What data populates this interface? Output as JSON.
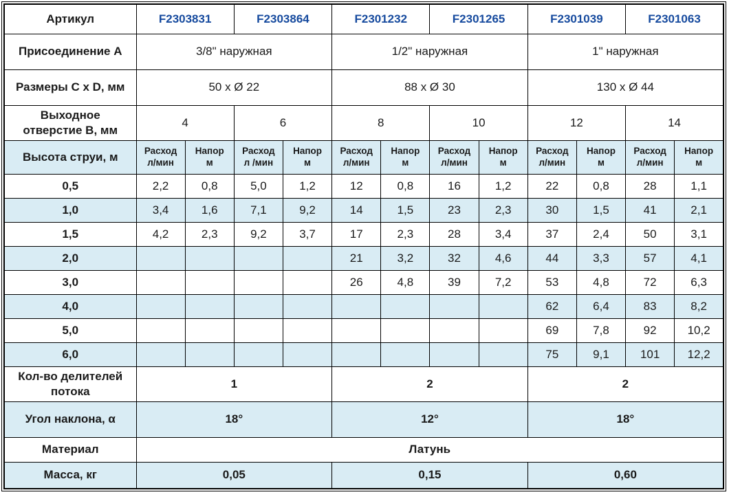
{
  "colors": {
    "article_blue": "#164a9e",
    "row_blue": "#d9ecf4",
    "border": "#000000"
  },
  "rows": {
    "article": {
      "label": "Артикул",
      "values": [
        "F2303831",
        "F2303864",
        "F2301232",
        "F2301265",
        "F2301039",
        "F2301063"
      ]
    },
    "connection": {
      "label": "Присоединение A",
      "values": [
        "3/8\" наружная",
        "1/2\" наружная",
        "1\" наружная"
      ]
    },
    "dimensions": {
      "label": "Размеры C x D, мм",
      "values": [
        "50 x Ø 22",
        "88 x Ø 30",
        "130 x Ø 44"
      ]
    },
    "outlet": {
      "label": "Выходное\nотверстие B, мм",
      "values": [
        "4",
        "6",
        "8",
        "10",
        "12",
        "14"
      ]
    },
    "jet": {
      "label": "Высота струи, м",
      "subheaders": [
        "Расход\nл/мин",
        "Напор\nм",
        "Расход\nл /мин",
        "Напор\nм",
        "Расход\nл/мин",
        "Напор\nм",
        "Расход\nл/мин",
        "Напор\nм",
        "Расход\nл/мин",
        "Напор\nм",
        "Расход\nл/мин",
        "Напор\nм"
      ]
    },
    "data": [
      {
        "height": "0,5",
        "values": [
          "2,2",
          "0,8",
          "5,0",
          "1,2",
          "12",
          "0,8",
          "16",
          "1,2",
          "22",
          "0,8",
          "28",
          "1,1"
        ]
      },
      {
        "height": "1,0",
        "values": [
          "3,4",
          "1,6",
          "7,1",
          "9,2",
          "14",
          "1,5",
          "23",
          "2,3",
          "30",
          "1,5",
          "41",
          "2,1"
        ]
      },
      {
        "height": "1,5",
        "values": [
          "4,2",
          "2,3",
          "9,2",
          "3,7",
          "17",
          "2,3",
          "28",
          "3,4",
          "37",
          "2,4",
          "50",
          "3,1"
        ]
      },
      {
        "height": "2,0",
        "values": [
          "",
          "",
          "",
          "",
          "21",
          "3,2",
          "32",
          "4,6",
          "44",
          "3,3",
          "57",
          "4,1"
        ]
      },
      {
        "height": "3,0",
        "values": [
          "",
          "",
          "",
          "",
          "26",
          "4,8",
          "39",
          "7,2",
          "53",
          "4,8",
          "72",
          "6,3"
        ]
      },
      {
        "height": "4,0",
        "values": [
          "",
          "",
          "",
          "",
          "",
          "",
          "",
          "",
          "62",
          "6,4",
          "83",
          "8,2"
        ]
      },
      {
        "height": "5,0",
        "values": [
          "",
          "",
          "",
          "",
          "",
          "",
          "",
          "",
          "69",
          "7,8",
          "92",
          "10,2"
        ]
      },
      {
        "height": "6,0",
        "values": [
          "",
          "",
          "",
          "",
          "",
          "",
          "",
          "",
          "75",
          "9,1",
          "101",
          "12,2"
        ]
      }
    ],
    "dividers": {
      "label": "Кол-во делителей\nпотока",
      "values": [
        "1",
        "2",
        "2"
      ]
    },
    "angle": {
      "label": "Угол наклона, α",
      "values": [
        "18°",
        "12°",
        "18°"
      ]
    },
    "material": {
      "label": "Материал",
      "value": "Латунь"
    },
    "mass": {
      "label": "Масса, кг",
      "values": [
        "0,05",
        "0,15",
        "0,60"
      ]
    }
  }
}
